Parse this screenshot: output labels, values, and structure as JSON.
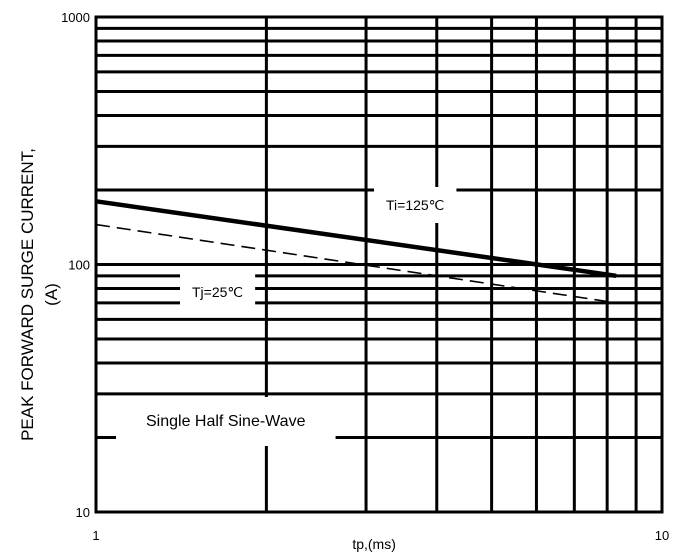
{
  "chart_data": {
    "type": "line",
    "xlabel": "tp,(ms)",
    "ylabel_line1": "PEAK FORWARD SURGE CURRENT,",
    "ylabel_line2": "(A)",
    "x_scale": "log",
    "y_scale": "log",
    "xlim": [
      1,
      10
    ],
    "ylim": [
      10,
      1000
    ],
    "x_tick_labels": [
      "1",
      "10"
    ],
    "y_tick_labels": [
      "10",
      "100",
      "1000"
    ],
    "grid": true,
    "series": [
      {
        "name": "Ti=125℃",
        "style": "solid",
        "x": [
          1,
          8.3
        ],
        "y": [
          180,
          90
        ]
      },
      {
        "name": "Tj=25℃",
        "style": "dashed",
        "x": [
          1,
          8.3
        ],
        "y": [
          145,
          70
        ]
      }
    ],
    "annotations": {
      "hot": "Ti=125℃",
      "cold": "Tj=25℃",
      "waveform": "Single Half Sine-Wave"
    },
    "colors": {
      "line": "#000000",
      "background": "#ffffff"
    }
  }
}
